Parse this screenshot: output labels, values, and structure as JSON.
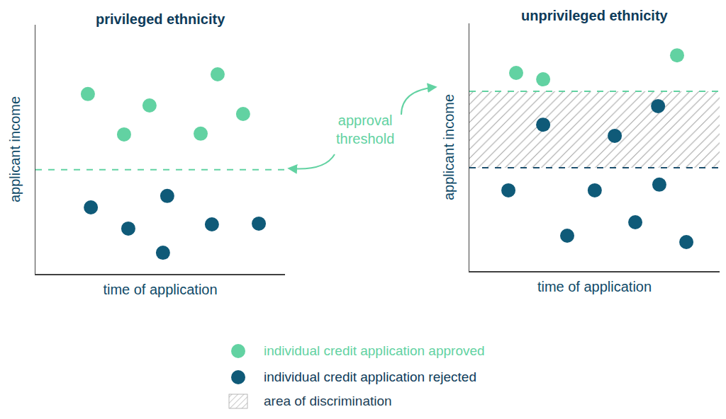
{
  "chart_data": [
    {
      "type": "scatter",
      "title": "privileged ethnicity",
      "x_label": "time of application",
      "y_label": "applicant income",
      "xlim": [
        0,
        10
      ],
      "ylim": [
        0,
        10
      ],
      "tick_labels": false,
      "grid": false,
      "marker": "circle",
      "series": [
        {
          "name": "individual credit application approved",
          "color": "#62d2a2",
          "x": [
            2.1,
            3.55,
            4.57,
            7.3,
            6.62,
            8.32
          ],
          "values": [
            7.22,
            5.6,
            6.76,
            8.01,
            5.63,
            6.42
          ]
        },
        {
          "name": "individual credit application rejected",
          "color": "#0f5a78",
          "x": [
            2.22,
            3.72,
            5.28,
            5.11,
            7.07,
            8.95
          ],
          "values": [
            2.67,
            1.82,
            3.13,
            0.85,
            1.99,
            2.02
          ]
        }
      ],
      "thresholds": [
        {
          "value": 4.18,
          "color": "#62d2a2"
        }
      ]
    },
    {
      "type": "scatter",
      "title": "unprivileged ethnicity",
      "x_label": "time of application",
      "y_label": "applicant income",
      "xlim": [
        0,
        10
      ],
      "ylim": [
        0,
        10
      ],
      "tick_labels": false,
      "grid": false,
      "marker": "circle",
      "series": [
        {
          "name": "individual credit application approved",
          "color": "#62d2a2",
          "x": [
            1.87,
            2.95,
            8.3
          ],
          "values": [
            8.0,
            7.74,
            8.71
          ]
        },
        {
          "name": "individual credit application rejected",
          "color": "#0f5a78",
          "x": [
            2.95,
            5.81,
            7.54,
            1.56,
            5.01,
            3.91,
            6.63,
            7.59,
            8.67
          ],
          "values": [
            5.91,
            5.46,
            6.66,
            3.26,
            3.26,
            1.43,
            1.97,
            3.49,
            1.17
          ]
        }
      ],
      "thresholds": [
        {
          "value": 7.26,
          "color": "#62d2a2"
        },
        {
          "value": 4.17,
          "color": "#1c4f6e"
        }
      ],
      "regions": [
        {
          "name": "area of discrimination",
          "y0": 4.17,
          "y1": 7.26,
          "color": "#a6a6a6"
        }
      ]
    }
  ],
  "annotation": "approval threshold"
}
